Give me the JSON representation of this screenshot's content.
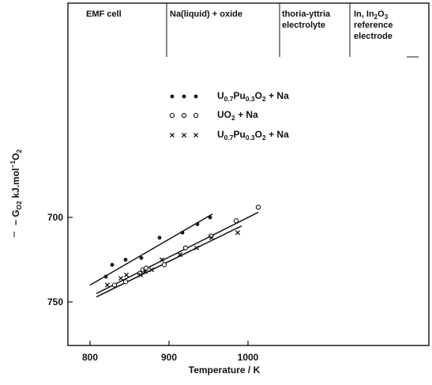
{
  "chart_data": {
    "type": "scatter",
    "xlabel": "Temperature / K",
    "ylabel_parts": {
      "minus": "−",
      "symbol": "G",
      "sub": "O2",
      "units": "kJ.mol",
      "exp": "−1",
      "species": "O",
      "species_sub": "2"
    },
    "x_ticks": [
      800,
      900,
      1000
    ],
    "y_ticks": [
      700,
      750
    ],
    "xlim": [
      775,
      1245
    ],
    "ylim_top_to_bottom": [
      642,
      750
    ],
    "y_axis_inverted": true,
    "header_cells": [
      {
        "lines": [
          "EMF cell"
        ]
      },
      {
        "lines": [
          "Na(liquid) + oxide"
        ]
      },
      {
        "lines": [
          "thoria-yttria",
          "electrolyte"
        ]
      },
      {
        "lines": [
          "In, In2O3",
          "reference",
          "electrode"
        ]
      }
    ],
    "legend": [
      {
        "marker": "filled-dot",
        "label": "U0.7Pu0.3O2 + Na",
        "base": "U",
        "s1": "0.7",
        "mid": "Pu",
        "s2": "0.3",
        "tail": "O",
        "s3": "2",
        "rest": " + Na"
      },
      {
        "marker": "open-circle",
        "label": "UO2 + Na",
        "base": "UO",
        "s1": "2",
        "rest": " + Na"
      },
      {
        "marker": "cross",
        "label": "U0.7Pu0.3O2 + Na",
        "base": "U",
        "s1": "0.7",
        "mid": "Pu",
        "s2": "0.3",
        "tail": "O",
        "s3": "2",
        "rest": " + Na"
      }
    ],
    "series": [
      {
        "marker": "filled-dot",
        "points": [
          [
            820,
            735
          ],
          [
            828,
            728
          ],
          [
            845,
            725
          ],
          [
            865,
            724
          ],
          [
            888,
            712
          ],
          [
            917,
            709
          ],
          [
            936,
            704
          ],
          [
            952,
            700
          ]
        ],
        "fit": [
          [
            800,
            740
          ],
          [
            955,
            698
          ]
        ]
      },
      {
        "marker": "open-circle",
        "points": [
          [
            831,
            740
          ],
          [
            845,
            738
          ],
          [
            863,
            733
          ],
          [
            867,
            731
          ],
          [
            871,
            730
          ],
          [
            894,
            728
          ],
          [
            921,
            718
          ],
          [
            953,
            711
          ],
          [
            985,
            702
          ],
          [
            1013,
            694
          ]
        ],
        "fit": [
          [
            808,
            745
          ],
          [
            1013,
            697
          ]
        ]
      },
      {
        "marker": "cross",
        "points": [
          [
            822,
            740
          ],
          [
            839,
            736
          ],
          [
            846,
            734
          ],
          [
            864,
            734
          ],
          [
            870,
            732
          ],
          [
            878,
            731
          ],
          [
            891,
            725
          ],
          [
            914,
            722
          ],
          [
            935,
            718
          ],
          [
            954,
            712
          ],
          [
            987,
            709
          ]
        ],
        "fit": [
          [
            808,
            747
          ],
          [
            992,
            705
          ]
        ]
      }
    ]
  }
}
